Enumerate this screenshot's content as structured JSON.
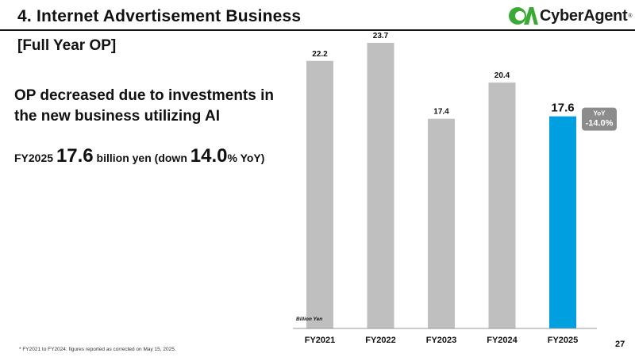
{
  "header": {
    "title": "4.  Internet Advertisement Business",
    "logo_text": "CyberAgent",
    "logo_mark": "CA",
    "logo_reg": "®"
  },
  "subtitle": "[Full Year OP]",
  "headline": "OP decreased due to investments in the new business utilizing AI",
  "summary": {
    "year": "FY2025",
    "value": "17.6",
    "unit_text": "billion yen (down",
    "change": "14.0",
    "change_suffix": "% YoY)"
  },
  "chart_data": {
    "type": "bar",
    "categories": [
      "FY2021",
      "FY2022",
      "FY2023",
      "FY2024",
      "FY2025"
    ],
    "values": [
      22.2,
      23.7,
      17.4,
      20.4,
      17.6
    ],
    "highlight_index": 4,
    "unit_label": "Billion Yen",
    "ylim": [
      0,
      23.7
    ],
    "yoy_badge": {
      "label": "YoY",
      "value": "-14.0%"
    },
    "colors": {
      "default": "#bfbfbf",
      "highlight": "#009fe0",
      "badge": "#8c8c8c"
    }
  },
  "footnote": "*  FY2021 to FY2024: figures reported as corrected on May 15, 2025.",
  "page_number": "27"
}
